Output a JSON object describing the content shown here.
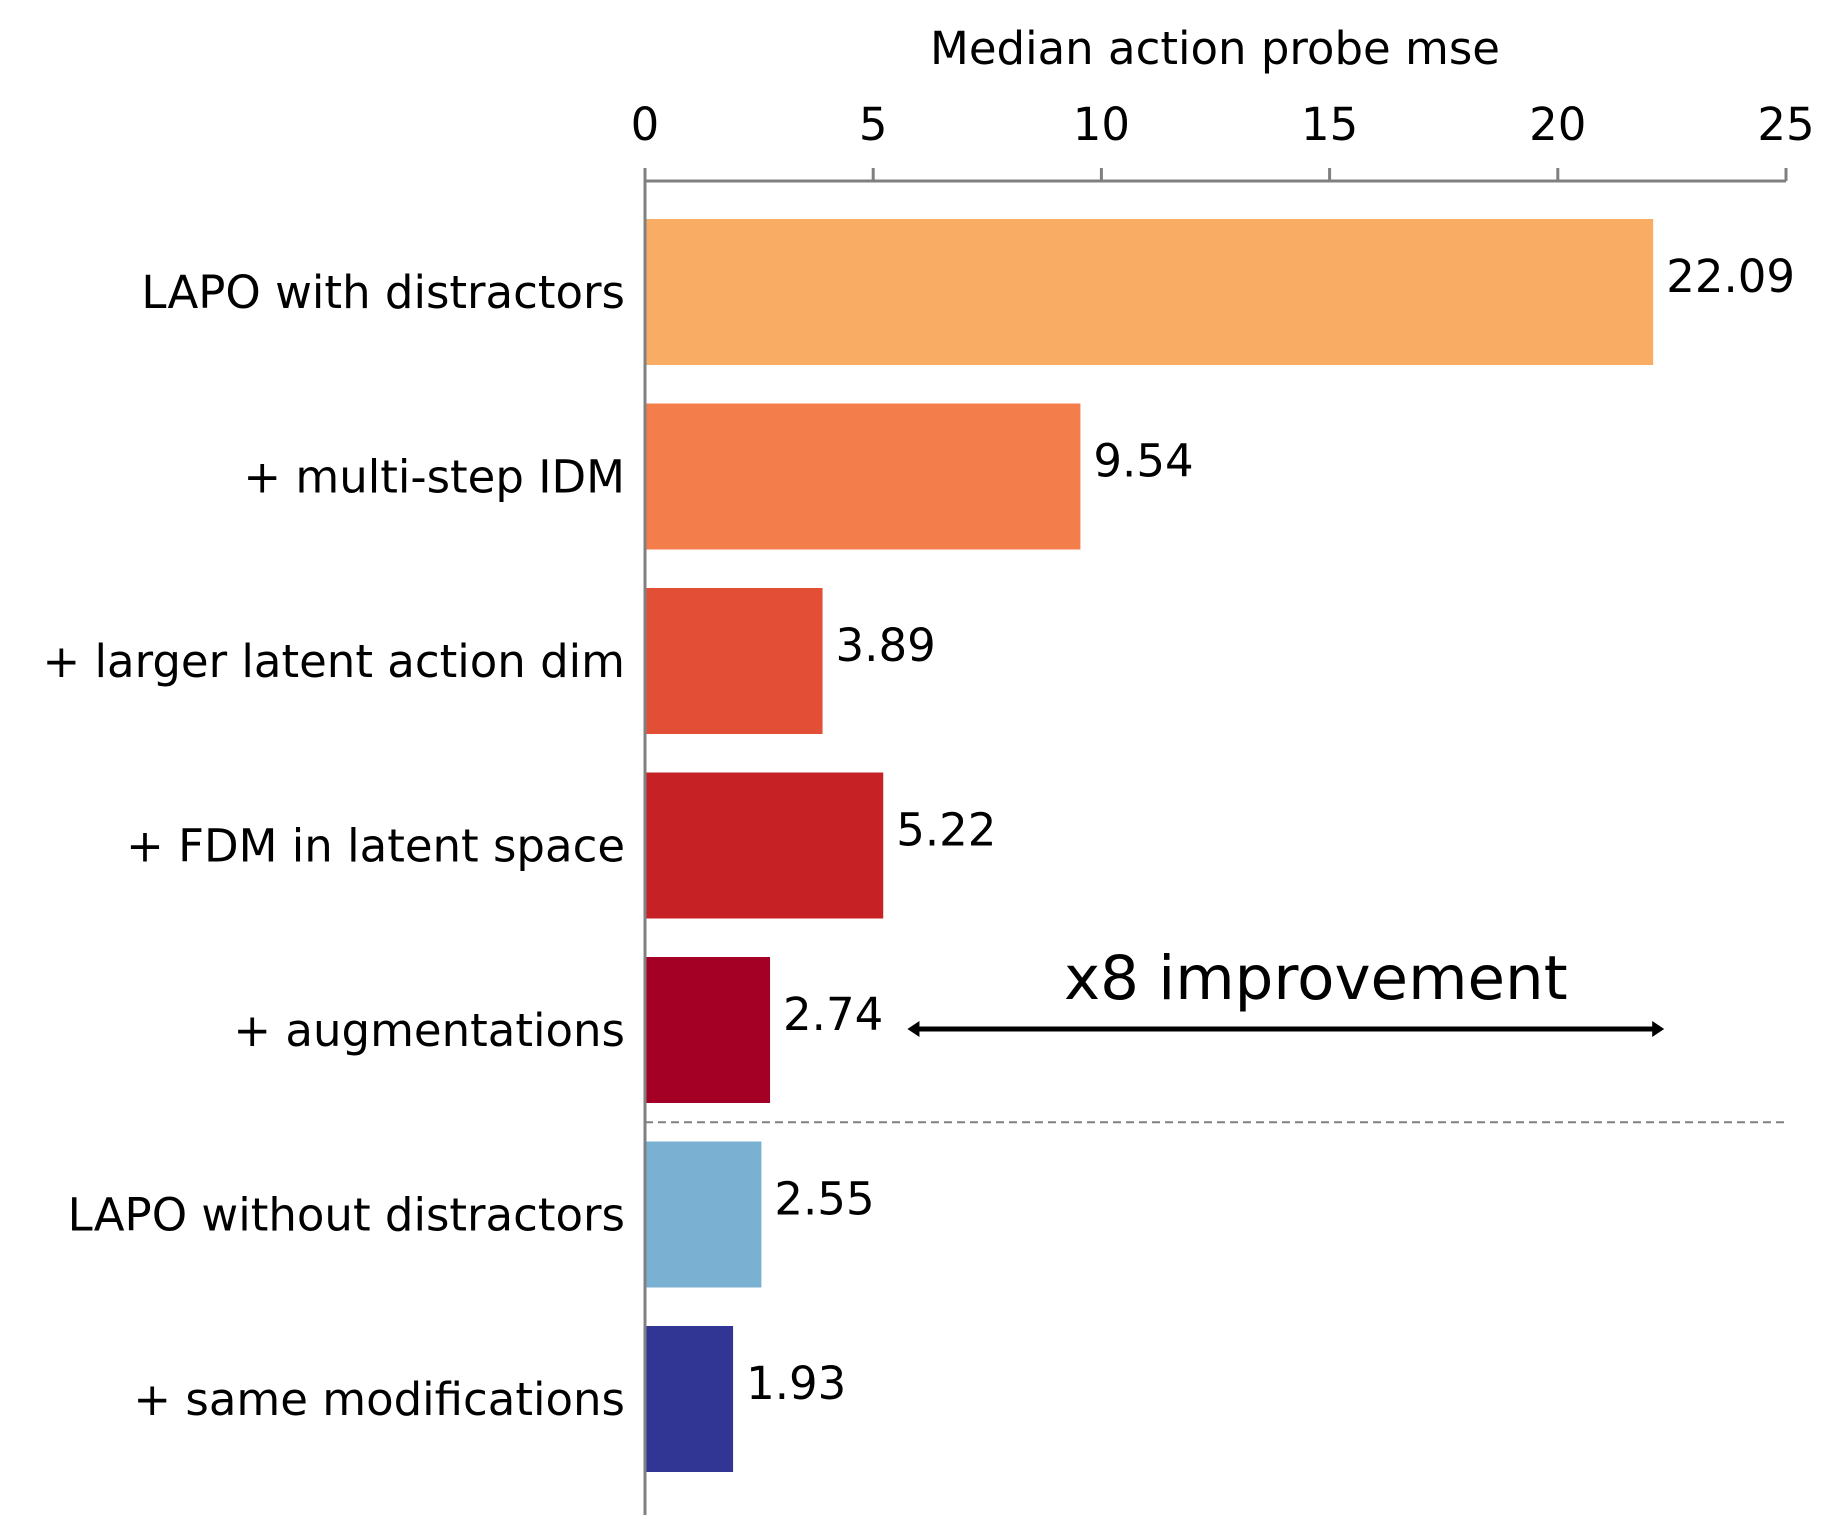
{
  "chart_data": {
    "type": "bar",
    "orientation": "horizontal",
    "xlabel": "Median action probe mse",
    "xaxis_position": "top",
    "xlim": [
      0,
      25
    ],
    "xticks": [
      0,
      5,
      10,
      15,
      20,
      25
    ],
    "grid": false,
    "legend": "none",
    "categories": [
      "LAPO with distractors",
      "+ multi-step IDM",
      "+ larger latent action dim",
      "+ FDM in latent space",
      "+ augmentations",
      "LAPO without distractors",
      "+ same modifications"
    ],
    "values": [
      22.09,
      9.54,
      3.89,
      5.22,
      2.74,
      2.55,
      1.93
    ],
    "value_labels": [
      "22.09",
      "9.54",
      "3.89",
      "5.22",
      "2.74",
      "2.55",
      "1.93"
    ],
    "colors": [
      "#f9ac63",
      "#f47e4b",
      "#e34f36",
      "#c62226",
      "#a40026",
      "#7ab0d1",
      "#313695"
    ],
    "separator": {
      "after_category_index": 4,
      "style": "dashed",
      "color": "#808080"
    },
    "annotation": {
      "text": "x8 improvement",
      "arrow": "double-headed",
      "from": 5.75,
      "to": 22.09,
      "row_index": 4
    }
  }
}
